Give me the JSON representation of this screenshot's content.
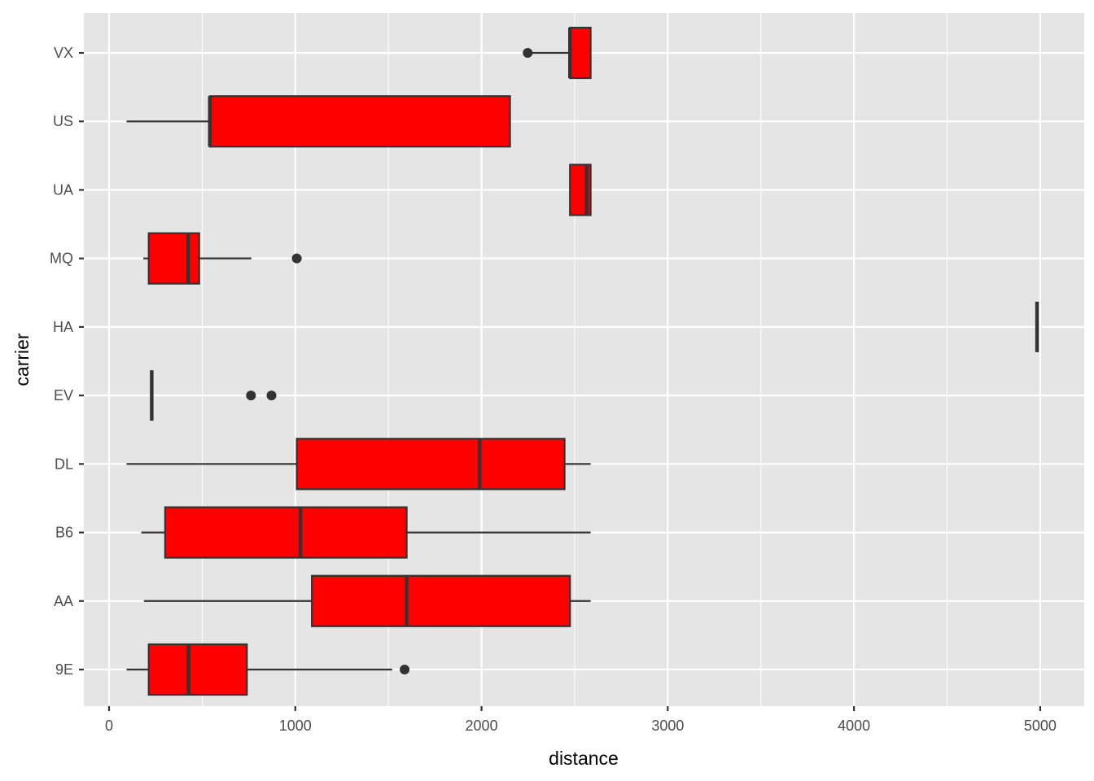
{
  "chart_data": {
    "type": "boxplot",
    "orientation": "horizontal",
    "title": "",
    "xlabel": "distance",
    "ylabel": "carrier",
    "xlim": [
      -150,
      5250
    ],
    "x_ticks": [
      0,
      1000,
      2000,
      3000,
      4000,
      5000
    ],
    "x_tick_labels": [
      "0",
      "1000",
      "2000",
      "3000",
      "4000",
      "5000"
    ],
    "grid": true,
    "legend": "none",
    "colors": {
      "panel_background": "#e5e5e5",
      "grid": "#ffffff",
      "box_fill": "#ff0000",
      "box_outline": "#333333",
      "axis_text": "#4d4d4d"
    },
    "categories": [
      "9E",
      "AA",
      "B6",
      "DL",
      "EV",
      "HA",
      "MQ",
      "UA",
      "US",
      "VX"
    ],
    "boxes": [
      {
        "carrier": "9E",
        "whisker_low": 94,
        "q1": 213,
        "median": 427,
        "q3": 740,
        "whisker_high": 1520,
        "outliers": [
          1587
        ]
      },
      {
        "carrier": "AA",
        "whisker_low": 187,
        "q1": 1089,
        "median": 1598,
        "q3": 2475,
        "whisker_high": 2586,
        "outliers": []
      },
      {
        "carrier": "B6",
        "whisker_low": 173,
        "q1": 301,
        "median": 1028,
        "q3": 1598,
        "whisker_high": 2586,
        "outliers": []
      },
      {
        "carrier": "DL",
        "whisker_low": 94,
        "q1": 1008,
        "median": 1990,
        "q3": 2446,
        "whisker_high": 2586,
        "outliers": []
      },
      {
        "carrier": "EV",
        "whisker_low": 229,
        "q1": 229,
        "median": 229,
        "q3": 229,
        "whisker_high": 229,
        "outliers": [
          762,
          872
        ]
      },
      {
        "carrier": "HA",
        "whisker_low": 4983,
        "q1": 4983,
        "median": 4983,
        "q3": 4983,
        "whisker_high": 4983,
        "outliers": []
      },
      {
        "carrier": "MQ",
        "whisker_low": 184,
        "q1": 213,
        "median": 425,
        "q3": 484,
        "whisker_high": 764,
        "outliers": [
          1008
        ]
      },
      {
        "carrier": "UA",
        "whisker_low": 2475,
        "q1": 2475,
        "median": 2565,
        "q3": 2586,
        "whisker_high": 2586,
        "outliers": []
      },
      {
        "carrier": "US",
        "whisker_low": 94,
        "q1": 541,
        "median": 541,
        "q3": 2153,
        "whisker_high": 2153,
        "outliers": []
      },
      {
        "carrier": "VX",
        "whisker_low": 2248,
        "q1": 2475,
        "median": 2475,
        "q3": 2586,
        "whisker_high": 2586,
        "outliers": [
          2248
        ]
      }
    ]
  }
}
